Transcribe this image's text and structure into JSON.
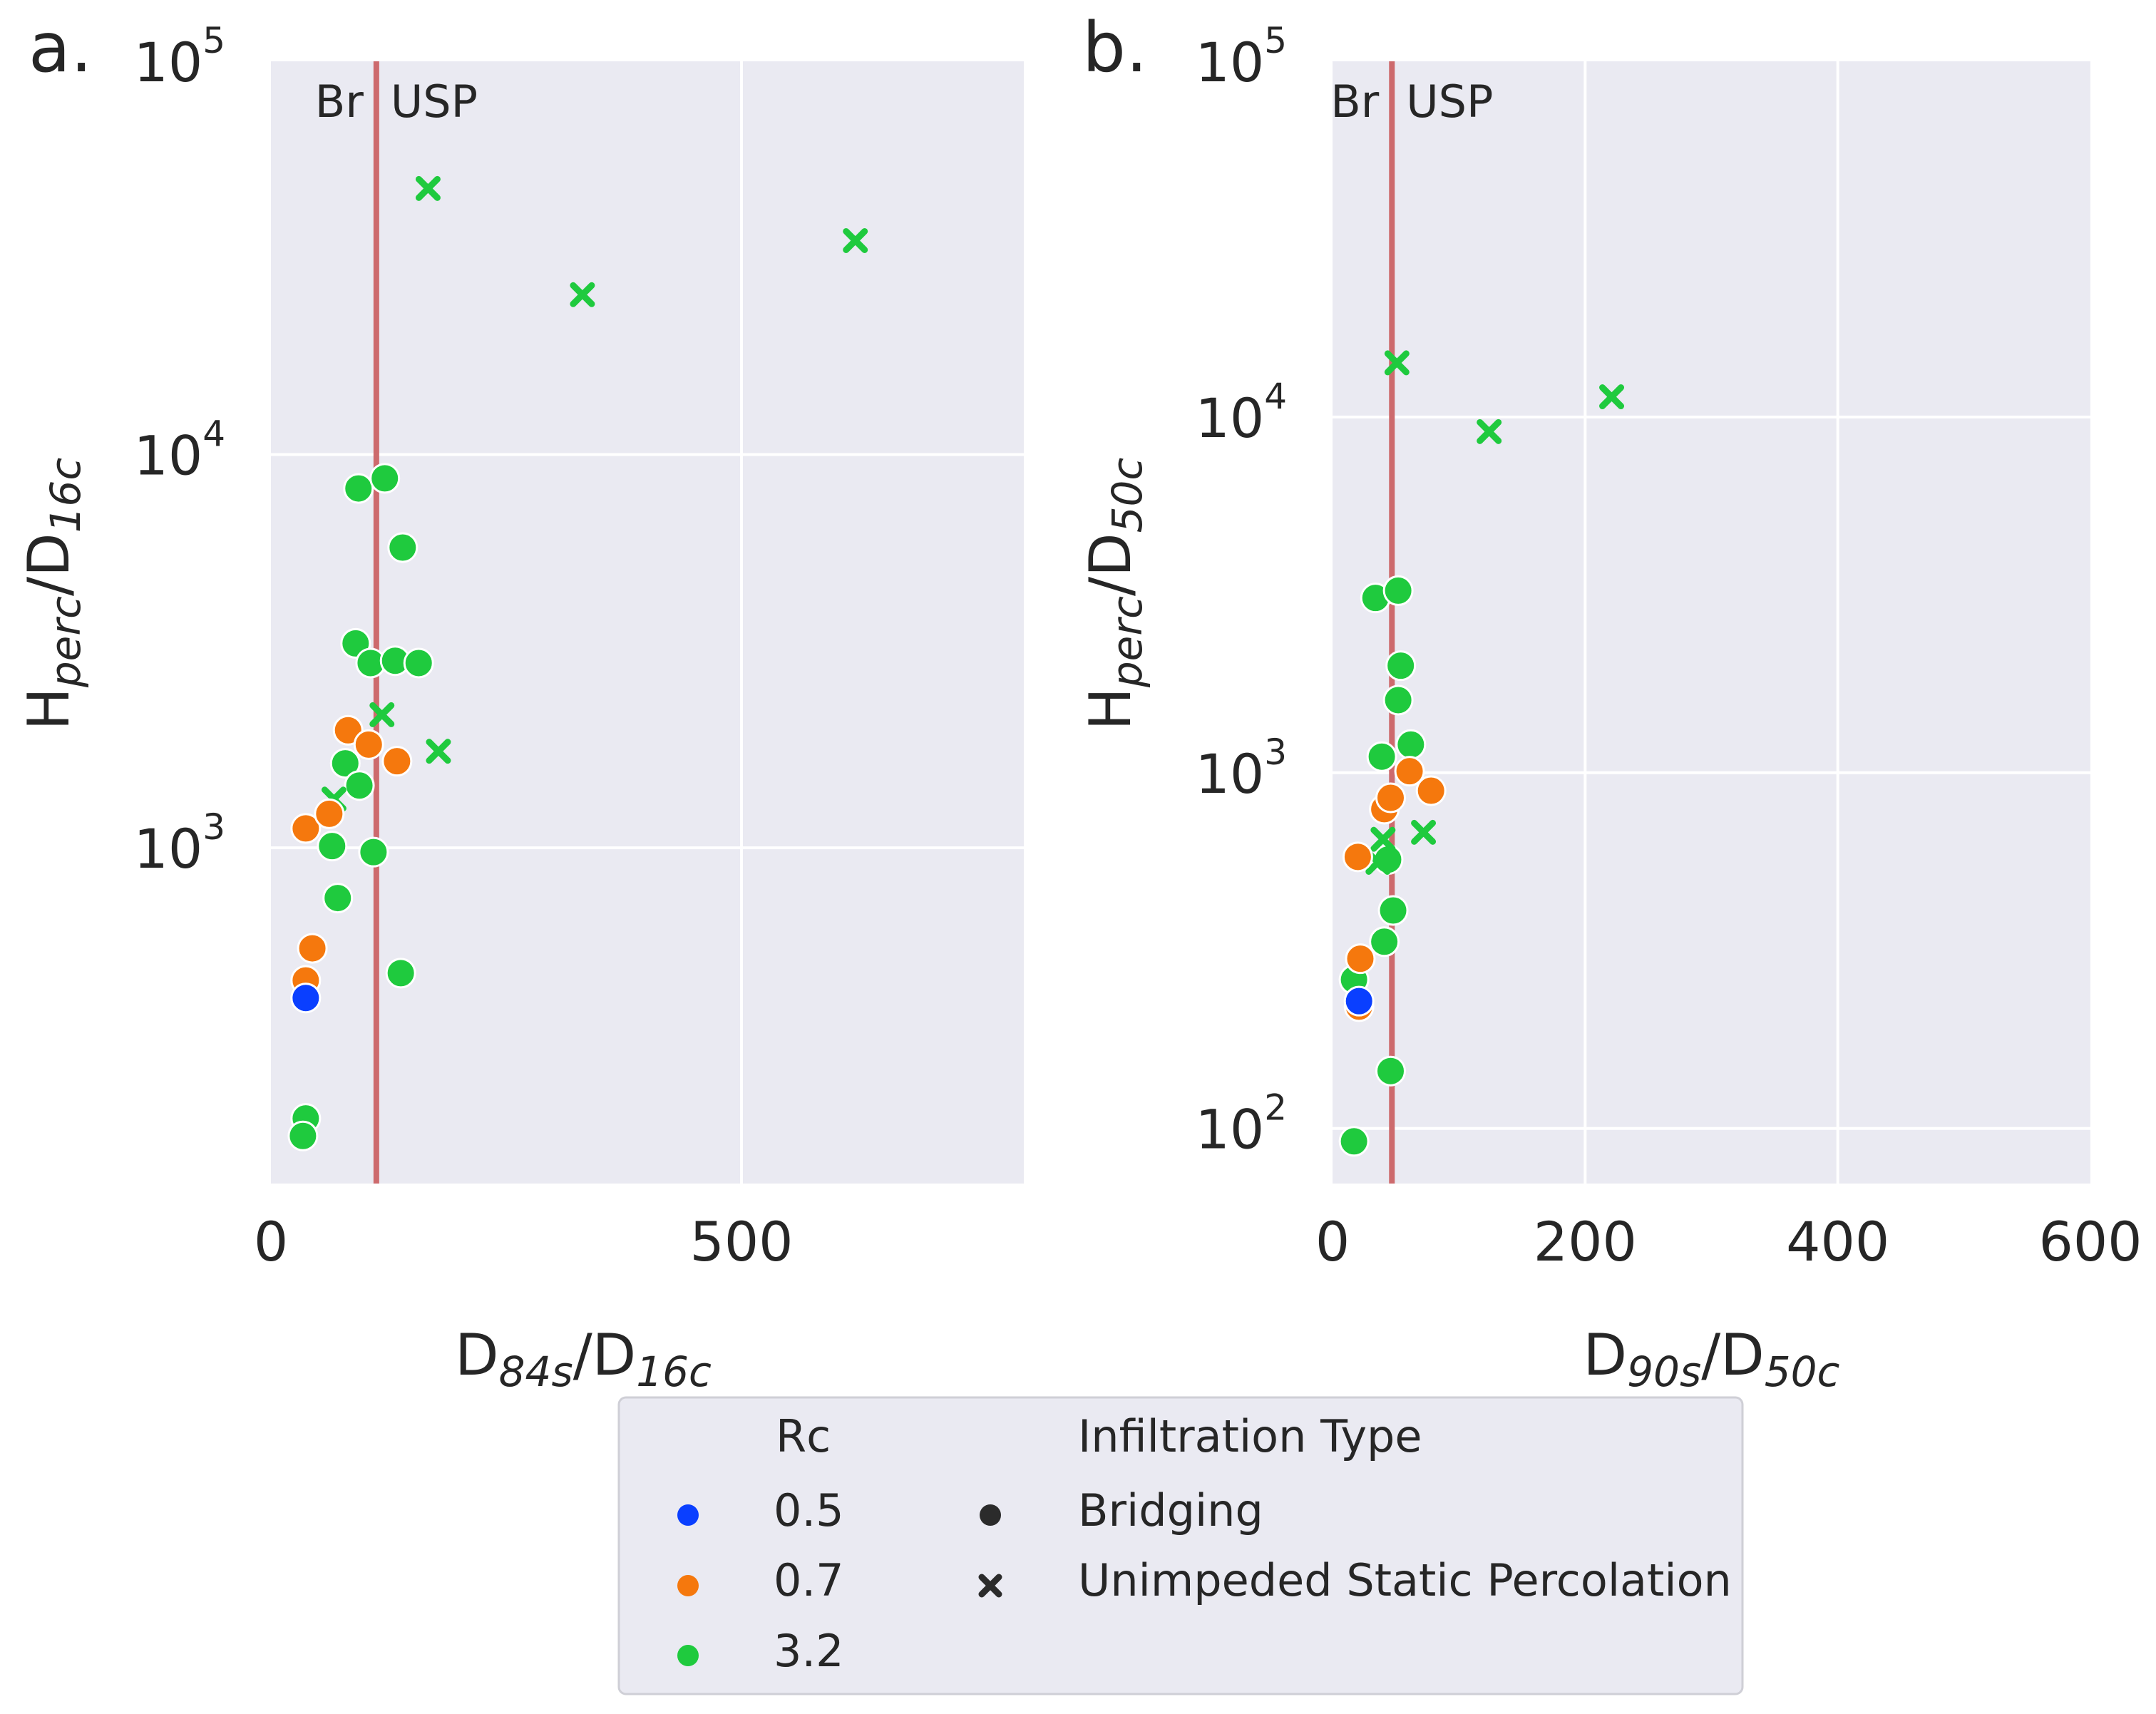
{
  "chart_data": [
    {
      "type": "scatter",
      "panel_label": "a.",
      "xlabel": {
        "base": "D",
        "sub1": "84s",
        "mid": "/D",
        "sub2": "16c"
      },
      "ylabel": {
        "base": "H",
        "sub1": "perc",
        "mid": "/D",
        "sub2": "16c"
      },
      "xscale": "linear",
      "yscale": "log",
      "xlim": [
        0,
        800
      ],
      "ylim": [
        140,
        100000
      ],
      "xticks": [
        0,
        500
      ],
      "xtick_labels": [
        "0",
        "500"
      ],
      "yticks": [
        1000,
        10000,
        100000
      ],
      "ytick_labels": [
        {
          "base": "10",
          "exp": "3"
        },
        {
          "base": "10",
          "exp": "4"
        },
        {
          "base": "10",
          "exp": "5"
        }
      ],
      "grid": true,
      "threshold": {
        "x": 112,
        "left_label": "Br",
        "right_label": "USP"
      },
      "points": [
        {
          "x": 37,
          "y": 415,
          "rc": "0.5",
          "type": "Bridging"
        },
        {
          "x": 37,
          "y": 460,
          "rc": "0.7",
          "type": "Bridging"
        },
        {
          "x": 44,
          "y": 555,
          "rc": "0.7",
          "type": "Bridging"
        },
        {
          "x": 37,
          "y": 1120,
          "rc": "0.7",
          "type": "Bridging"
        },
        {
          "x": 62,
          "y": 1220,
          "rc": "0.7",
          "type": "Bridging"
        },
        {
          "x": 82,
          "y": 1990,
          "rc": "0.7",
          "type": "Bridging"
        },
        {
          "x": 104,
          "y": 1830,
          "rc": "0.7",
          "type": "Bridging"
        },
        {
          "x": 134,
          "y": 1660,
          "rc": "0.7",
          "type": "Bridging"
        },
        {
          "x": 37,
          "y": 205,
          "rc": "3.2",
          "type": "Bridging"
        },
        {
          "x": 34,
          "y": 185,
          "rc": "3.2",
          "type": "Bridging"
        },
        {
          "x": 65,
          "y": 1010,
          "rc": "3.2",
          "type": "Bridging"
        },
        {
          "x": 71,
          "y": 745,
          "rc": "3.2",
          "type": "Bridging"
        },
        {
          "x": 79,
          "y": 1640,
          "rc": "3.2",
          "type": "Bridging"
        },
        {
          "x": 94,
          "y": 1440,
          "rc": "3.2",
          "type": "Bridging"
        },
        {
          "x": 109,
          "y": 975,
          "rc": "3.2",
          "type": "Bridging"
        },
        {
          "x": 90,
          "y": 3310,
          "rc": "3.2",
          "type": "Bridging"
        },
        {
          "x": 106,
          "y": 2950,
          "rc": "3.2",
          "type": "Bridging"
        },
        {
          "x": 132,
          "y": 2990,
          "rc": "3.2",
          "type": "Bridging"
        },
        {
          "x": 157,
          "y": 2950,
          "rc": "3.2",
          "type": "Bridging"
        },
        {
          "x": 93,
          "y": 8200,
          "rc": "3.2",
          "type": "Bridging"
        },
        {
          "x": 121,
          "y": 8700,
          "rc": "3.2",
          "type": "Bridging"
        },
        {
          "x": 140,
          "y": 5800,
          "rc": "3.2",
          "type": "Bridging"
        },
        {
          "x": 138,
          "y": 480,
          "rc": "3.2",
          "type": "Bridging"
        },
        {
          "x": 67,
          "y": 1330,
          "rc": "3.2",
          "type": "Unimpeded Static Percolation"
        },
        {
          "x": 118,
          "y": 2180,
          "rc": "3.2",
          "type": "Unimpeded Static Percolation"
        },
        {
          "x": 178,
          "y": 1760,
          "rc": "3.2",
          "type": "Unimpeded Static Percolation"
        },
        {
          "x": 167,
          "y": 47500,
          "rc": "3.2",
          "type": "Unimpeded Static Percolation"
        },
        {
          "x": 331,
          "y": 25500,
          "rc": "3.2",
          "type": "Unimpeded Static Percolation"
        },
        {
          "x": 621,
          "y": 35000,
          "rc": "3.2",
          "type": "Unimpeded Static Percolation"
        }
      ]
    },
    {
      "type": "scatter",
      "panel_label": "b.",
      "xlabel": {
        "base": "D",
        "sub1": "90s",
        "mid": "/D",
        "sub2": "50c"
      },
      "ylabel": {
        "base": "H",
        "sub1": "perc",
        "mid": "/D",
        "sub2": "50c"
      },
      "xscale": "linear",
      "yscale": "log",
      "xlim": [
        0,
        600
      ],
      "ylim": [
        70,
        100000
      ],
      "xticks": [
        0,
        200,
        400,
        600
      ],
      "xtick_labels": [
        "0",
        "200",
        "400",
        "600"
      ],
      "yticks": [
        100,
        1000,
        10000,
        100000
      ],
      "ytick_labels": [
        {
          "base": "10",
          "exp": "2"
        },
        {
          "base": "10",
          "exp": "3"
        },
        {
          "base": "10",
          "exp": "4"
        },
        {
          "base": "10",
          "exp": "5"
        }
      ],
      "grid": true,
      "threshold": {
        "x": 47,
        "left_label": "Br",
        "right_label": "USP"
      },
      "points": [
        {
          "x": 21,
          "y": 228,
          "rc": "0.5",
          "type": "Bridging"
        },
        {
          "x": 21,
          "y": 220,
          "rc": "0.7",
          "type": "Bridging"
        },
        {
          "x": 22,
          "y": 300,
          "rc": "0.7",
          "type": "Bridging"
        },
        {
          "x": 20,
          "y": 580,
          "rc": "0.7",
          "type": "Bridging"
        },
        {
          "x": 41,
          "y": 790,
          "rc": "0.7",
          "type": "Bridging"
        },
        {
          "x": 46,
          "y": 850,
          "rc": "0.7",
          "type": "Bridging"
        },
        {
          "x": 61,
          "y": 1010,
          "rc": "0.7",
          "type": "Bridging"
        },
        {
          "x": 78,
          "y": 890,
          "rc": "0.7",
          "type": "Bridging"
        },
        {
          "x": 17,
          "y": 92,
          "rc": "3.2",
          "type": "Bridging"
        },
        {
          "x": 17,
          "y": 262,
          "rc": "3.2",
          "type": "Bridging"
        },
        {
          "x": 41,
          "y": 335,
          "rc": "3.2",
          "type": "Bridging"
        },
        {
          "x": 46,
          "y": 145,
          "rc": "3.2",
          "type": "Bridging"
        },
        {
          "x": 48,
          "y": 410,
          "rc": "3.2",
          "type": "Bridging"
        },
        {
          "x": 44,
          "y": 570,
          "rc": "3.2",
          "type": "Bridging"
        },
        {
          "x": 39,
          "y": 1110,
          "rc": "3.2",
          "type": "Bridging"
        },
        {
          "x": 52,
          "y": 1600,
          "rc": "3.2",
          "type": "Bridging"
        },
        {
          "x": 54,
          "y": 2000,
          "rc": "3.2",
          "type": "Bridging"
        },
        {
          "x": 34,
          "y": 3100,
          "rc": "3.2",
          "type": "Bridging"
        },
        {
          "x": 52,
          "y": 3250,
          "rc": "3.2",
          "type": "Bridging"
        },
        {
          "x": 62,
          "y": 1200,
          "rc": "3.2",
          "type": "Bridging"
        },
        {
          "x": 36,
          "y": 560,
          "rc": "3.2",
          "type": "Unimpeded Static Percolation"
        },
        {
          "x": 40,
          "y": 650,
          "rc": "3.2",
          "type": "Unimpeded Static Percolation"
        },
        {
          "x": 72,
          "y": 680,
          "rc": "3.2",
          "type": "Unimpeded Static Percolation"
        },
        {
          "x": 51,
          "y": 14200,
          "rc": "3.2",
          "type": "Unimpeded Static Percolation"
        },
        {
          "x": 124,
          "y": 9100,
          "rc": "3.2",
          "type": "Unimpeded Static Percolation"
        },
        {
          "x": 221,
          "y": 11400,
          "rc": "3.2",
          "type": "Unimpeded Static Percolation"
        }
      ]
    }
  ],
  "legend": {
    "hue_title": "Rc",
    "hue_items": [
      {
        "label": "0.5",
        "color": "#0a3fff"
      },
      {
        "label": "0.7",
        "color": "#f5780d"
      },
      {
        "label": "3.2",
        "color": "#1fca3e"
      }
    ],
    "style_title": "Infiltration Type",
    "style_items": [
      {
        "label": "Bridging",
        "marker": "circle"
      },
      {
        "label": "Unimpeded Static Percolation",
        "marker": "x"
      }
    ],
    "placement": "bottom-center"
  },
  "colors": {
    "plot_background": "#eaeaf2",
    "grid": "#ffffff",
    "threshold_line": "#cd6a6d",
    "rc_0.5": "#0a3fff",
    "rc_0.7": "#f5780d",
    "rc_3.2": "#1fca3e"
  }
}
